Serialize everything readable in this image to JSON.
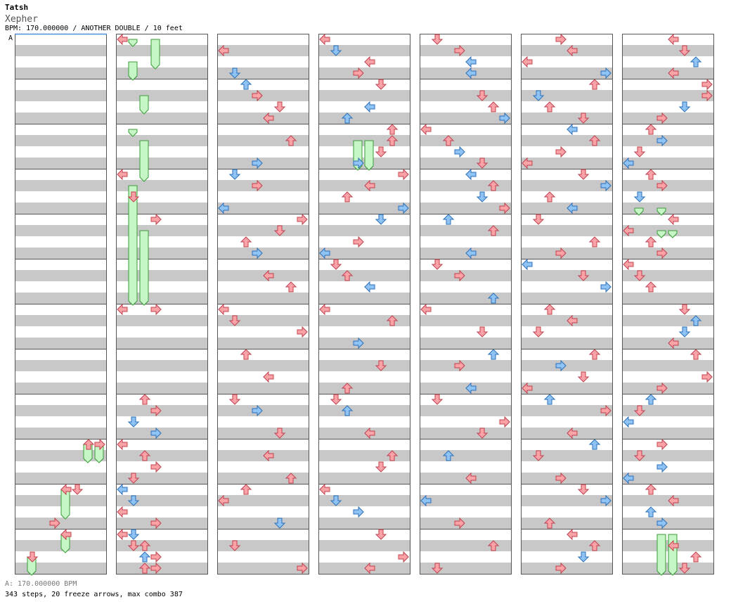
{
  "header": {
    "artist": "Tatsh",
    "title": "Xepher",
    "info": "BPM: 170.000000 / ANOTHER DOUBLE / 10 feet"
  },
  "footer": {
    "bpm_note": "A: 170.000000 BPM",
    "stats": "343 steps, 20 freeze arrows, max combo 387"
  },
  "chart_data": {
    "type": "step-chart",
    "bpm_marker_label": "A",
    "columns": 7,
    "measures_per_column": 12,
    "rows_per_measure": 4,
    "lanes": 8,
    "colors": {
      "quarter_note": "#f9a3a8",
      "eighth_note": "#8fc3f5",
      "freeze": "#c6f5c6",
      "freeze_border": "#3a9c3a",
      "band_gray": "#c8c8c8",
      "band_white": "#ffffff"
    },
    "notes": [
      [
        2,
        1,
        0,
        "r"
      ],
      [
        2,
        3,
        1,
        "b"
      ],
      [
        2,
        4,
        2,
        "b"
      ],
      [
        2,
        5,
        3,
        "r"
      ],
      [
        2,
        5,
        3,
        "r"
      ],
      [
        2,
        6,
        5,
        "r"
      ],
      [
        2,
        7,
        4,
        "r"
      ],
      [
        2,
        9,
        6,
        "r"
      ],
      [
        2,
        11,
        3,
        "b"
      ],
      [
        2,
        12,
        1,
        "b"
      ],
      [
        2,
        13,
        3,
        "r"
      ],
      [
        2,
        15,
        0,
        "b"
      ],
      [
        2,
        16,
        7,
        "r"
      ],
      [
        2,
        17,
        5,
        "r"
      ],
      [
        2,
        18,
        2,
        "r"
      ],
      [
        2,
        19,
        3,
        "b"
      ],
      [
        2,
        21,
        4,
        "r"
      ],
      [
        2,
        22,
        6,
        "r"
      ],
      [
        2,
        24,
        0,
        "r"
      ],
      [
        2,
        25,
        1,
        "r"
      ],
      [
        2,
        26,
        7,
        "r"
      ],
      [
        2,
        28,
        2,
        "r"
      ],
      [
        2,
        30,
        4,
        "r"
      ],
      [
        2,
        32,
        1,
        "r"
      ],
      [
        2,
        33,
        3,
        "b"
      ],
      [
        2,
        35,
        5,
        "r"
      ],
      [
        2,
        37,
        4,
        "r"
      ],
      [
        2,
        39,
        6,
        "r"
      ],
      [
        2,
        40,
        2,
        "r"
      ],
      [
        2,
        41,
        0,
        "r"
      ],
      [
        2,
        43,
        5,
        "b"
      ],
      [
        2,
        45,
        1,
        "r"
      ],
      [
        2,
        47,
        7,
        "r"
      ],
      [
        3,
        0,
        0,
        "r"
      ],
      [
        3,
        1,
        1,
        "b"
      ],
      [
        3,
        2,
        4,
        "r"
      ],
      [
        3,
        3,
        3,
        "r"
      ],
      [
        3,
        4,
        5,
        "r"
      ],
      [
        3,
        6,
        4,
        "b"
      ],
      [
        3,
        7,
        2,
        "b"
      ],
      [
        3,
        8,
        6,
        "r"
      ],
      [
        3,
        9,
        6,
        "r"
      ],
      [
        3,
        10,
        5,
        "r"
      ],
      [
        3,
        11,
        3,
        "b"
      ],
      [
        3,
        12,
        7,
        "r"
      ],
      [
        3,
        13,
        4,
        "r"
      ],
      [
        3,
        14,
        2,
        "r"
      ],
      [
        3,
        15,
        7,
        "b"
      ],
      [
        3,
        16,
        5,
        "b"
      ],
      [
        3,
        18,
        3,
        "r"
      ],
      [
        3,
        19,
        0,
        "b"
      ],
      [
        3,
        20,
        1,
        "r"
      ],
      [
        3,
        21,
        2,
        "r"
      ],
      [
        3,
        22,
        4,
        "b"
      ],
      [
        3,
        24,
        0,
        "r"
      ],
      [
        3,
        25,
        6,
        "r"
      ],
      [
        3,
        27,
        3,
        "b"
      ],
      [
        3,
        29,
        5,
        "r"
      ],
      [
        3,
        31,
        2,
        "r"
      ],
      [
        3,
        32,
        1,
        "r"
      ],
      [
        3,
        33,
        2,
        "b"
      ],
      [
        3,
        35,
        4,
        "r"
      ],
      [
        3,
        37,
        6,
        "r"
      ],
      [
        3,
        38,
        5,
        "r"
      ],
      [
        3,
        40,
        0,
        "r"
      ],
      [
        3,
        41,
        1,
        "b"
      ],
      [
        3,
        42,
        3,
        "b"
      ],
      [
        3,
        44,
        5,
        "r"
      ],
      [
        3,
        46,
        7,
        "r"
      ],
      [
        3,
        47,
        4,
        "r"
      ],
      [
        4,
        0,
        1,
        "r"
      ],
      [
        4,
        1,
        3,
        "r"
      ],
      [
        4,
        2,
        4,
        "b"
      ],
      [
        4,
        3,
        4,
        "b"
      ],
      [
        4,
        5,
        5,
        "r"
      ],
      [
        4,
        6,
        6,
        "r"
      ],
      [
        4,
        7,
        7,
        "b"
      ],
      [
        4,
        8,
        0,
        "r"
      ],
      [
        4,
        9,
        2,
        "r"
      ],
      [
        4,
        10,
        3,
        "b"
      ],
      [
        4,
        11,
        5,
        "r"
      ],
      [
        4,
        12,
        4,
        "b"
      ],
      [
        4,
        13,
        6,
        "r"
      ],
      [
        4,
        14,
        5,
        "b"
      ],
      [
        4,
        15,
        7,
        "r"
      ],
      [
        4,
        16,
        2,
        "b"
      ],
      [
        4,
        17,
        6,
        "r"
      ],
      [
        4,
        19,
        4,
        "b"
      ],
      [
        4,
        20,
        1,
        "r"
      ],
      [
        4,
        21,
        3,
        "r"
      ],
      [
        4,
        23,
        6,
        "b"
      ],
      [
        4,
        24,
        0,
        "r"
      ],
      [
        4,
        26,
        5,
        "r"
      ],
      [
        4,
        28,
        6,
        "b"
      ],
      [
        4,
        29,
        3,
        "r"
      ],
      [
        4,
        31,
        4,
        "b"
      ],
      [
        4,
        32,
        1,
        "r"
      ],
      [
        4,
        34,
        7,
        "r"
      ],
      [
        4,
        35,
        5,
        "r"
      ],
      [
        4,
        37,
        2,
        "b"
      ],
      [
        4,
        39,
        4,
        "r"
      ],
      [
        4,
        41,
        0,
        "b"
      ],
      [
        4,
        43,
        3,
        "r"
      ],
      [
        4,
        45,
        6,
        "r"
      ],
      [
        4,
        47,
        1,
        "r"
      ],
      [
        5,
        0,
        3,
        "r"
      ],
      [
        5,
        1,
        4,
        "r"
      ],
      [
        5,
        2,
        0,
        "r"
      ],
      [
        5,
        3,
        7,
        "b"
      ],
      [
        5,
        4,
        6,
        "r"
      ],
      [
        5,
        5,
        1,
        "b"
      ],
      [
        5,
        6,
        2,
        "r"
      ],
      [
        5,
        7,
        5,
        "r"
      ],
      [
        5,
        8,
        4,
        "b"
      ],
      [
        5,
        9,
        6,
        "r"
      ],
      [
        5,
        10,
        3,
        "r"
      ],
      [
        5,
        11,
        0,
        "r"
      ],
      [
        5,
        12,
        5,
        "r"
      ],
      [
        5,
        13,
        7,
        "b"
      ],
      [
        5,
        14,
        2,
        "r"
      ],
      [
        5,
        15,
        4,
        "b"
      ],
      [
        5,
        16,
        1,
        "r"
      ],
      [
        5,
        18,
        6,
        "r"
      ],
      [
        5,
        19,
        3,
        "r"
      ],
      [
        5,
        20,
        0,
        "b"
      ],
      [
        5,
        21,
        5,
        "r"
      ],
      [
        5,
        22,
        7,
        "b"
      ],
      [
        5,
        24,
        2,
        "r"
      ],
      [
        5,
        25,
        4,
        "r"
      ],
      [
        5,
        26,
        1,
        "r"
      ],
      [
        5,
        28,
        6,
        "r"
      ],
      [
        5,
        29,
        3,
        "b"
      ],
      [
        5,
        30,
        5,
        "r"
      ],
      [
        5,
        31,
        0,
        "r"
      ],
      [
        5,
        32,
        2,
        "b"
      ],
      [
        5,
        33,
        7,
        "r"
      ],
      [
        5,
        35,
        4,
        "r"
      ],
      [
        5,
        36,
        6,
        "b"
      ],
      [
        5,
        37,
        1,
        "r"
      ],
      [
        5,
        39,
        3,
        "r"
      ],
      [
        5,
        40,
        5,
        "r"
      ],
      [
        5,
        41,
        7,
        "b"
      ],
      [
        5,
        43,
        2,
        "r"
      ],
      [
        5,
        44,
        4,
        "r"
      ],
      [
        5,
        45,
        6,
        "r"
      ],
      [
        5,
        46,
        5,
        "b"
      ],
      [
        5,
        47,
        3,
        "r"
      ],
      [
        6,
        0,
        4,
        "r"
      ],
      [
        6,
        1,
        5,
        "r"
      ],
      [
        6,
        2,
        6,
        "b"
      ],
      [
        6,
        3,
        4,
        "r"
      ],
      [
        6,
        4,
        7,
        "r"
      ],
      [
        6,
        5,
        7,
        "r"
      ],
      [
        6,
        6,
        5,
        "b"
      ],
      [
        6,
        7,
        3,
        "r"
      ],
      [
        6,
        8,
        2,
        "r"
      ],
      [
        6,
        9,
        3,
        "b"
      ],
      [
        6,
        10,
        1,
        "r"
      ],
      [
        6,
        11,
        0,
        "b"
      ],
      [
        6,
        12,
        2,
        "r"
      ],
      [
        6,
        13,
        3,
        "r"
      ],
      [
        6,
        14,
        1,
        "b"
      ],
      [
        6,
        16,
        4,
        "r"
      ],
      [
        6,
        17,
        0,
        "r"
      ],
      [
        6,
        18,
        2,
        "r"
      ],
      [
        6,
        19,
        3,
        "r"
      ],
      [
        6,
        20,
        0,
        "r"
      ],
      [
        6,
        21,
        1,
        "r"
      ],
      [
        6,
        22,
        2,
        "r"
      ],
      [
        6,
        24,
        5,
        "r"
      ],
      [
        6,
        25,
        6,
        "b"
      ],
      [
        6,
        26,
        5,
        "b"
      ],
      [
        6,
        27,
        4,
        "r"
      ],
      [
        6,
        28,
        6,
        "r"
      ],
      [
        6,
        30,
        7,
        "r"
      ],
      [
        6,
        31,
        3,
        "r"
      ],
      [
        6,
        32,
        2,
        "b"
      ],
      [
        6,
        33,
        1,
        "r"
      ],
      [
        6,
        34,
        0,
        "b"
      ],
      [
        6,
        36,
        3,
        "r"
      ],
      [
        6,
        37,
        1,
        "r"
      ],
      [
        6,
        38,
        3,
        "b"
      ],
      [
        6,
        39,
        0,
        "b"
      ],
      [
        6,
        40,
        2,
        "r"
      ],
      [
        6,
        41,
        4,
        "r"
      ],
      [
        6,
        42,
        2,
        "b"
      ],
      [
        6,
        43,
        3,
        "b"
      ],
      [
        6,
        45,
        4,
        "r"
      ],
      [
        6,
        46,
        6,
        "r"
      ],
      [
        6,
        47,
        5,
        "r"
      ],
      [
        1,
        0,
        0,
        "r"
      ],
      [
        1,
        12,
        0,
        "r"
      ],
      [
        1,
        14,
        1,
        "r"
      ],
      [
        1,
        16,
        3,
        "r"
      ],
      [
        1,
        24,
        0,
        "r"
      ],
      [
        1,
        24,
        3,
        "r"
      ],
      [
        1,
        32,
        2,
        "r"
      ],
      [
        1,
        33,
        3,
        "r"
      ],
      [
        1,
        34,
        1,
        "b"
      ],
      [
        1,
        35,
        3,
        "b"
      ],
      [
        1,
        36,
        0,
        "r"
      ],
      [
        1,
        37,
        2,
        "r"
      ],
      [
        1,
        38,
        3,
        "r"
      ],
      [
        1,
        39,
        1,
        "r"
      ],
      [
        1,
        40,
        0,
        "b"
      ],
      [
        1,
        41,
        1,
        "b"
      ],
      [
        1,
        42,
        0,
        "r"
      ],
      [
        1,
        44,
        0,
        "r"
      ],
      [
        1,
        45,
        1,
        "r"
      ],
      [
        1,
        46,
        2,
        "b"
      ],
      [
        1,
        47,
        3,
        "r"
      ],
      [
        1,
        43,
        3,
        "r"
      ],
      [
        1,
        44,
        1,
        "b"
      ],
      [
        1,
        45,
        2,
        "r"
      ],
      [
        1,
        46,
        3,
        "r"
      ],
      [
        1,
        47,
        2,
        "r"
      ],
      [
        0,
        36,
        6,
        "r"
      ],
      [
        0,
        36,
        7,
        "r"
      ],
      [
        0,
        40,
        4,
        "r"
      ],
      [
        0,
        40,
        5,
        "r"
      ],
      [
        0,
        43,
        3,
        "r"
      ],
      [
        0,
        44,
        4,
        "r"
      ],
      [
        0,
        46,
        1,
        "r"
      ]
    ],
    "freezes": [
      [
        0,
        36,
        6,
        38
      ],
      [
        0,
        36,
        7,
        38
      ],
      [
        0,
        40,
        4,
        43
      ],
      [
        0,
        44,
        4,
        46
      ],
      [
        0,
        46,
        1,
        48
      ],
      [
        1,
        0,
        1,
        1
      ],
      [
        1,
        0,
        3,
        3
      ],
      [
        1,
        2,
        1,
        4
      ],
      [
        1,
        5,
        2,
        7
      ],
      [
        1,
        8,
        1,
        9
      ],
      [
        1,
        9,
        2,
        13
      ],
      [
        1,
        13,
        1,
        24
      ],
      [
        1,
        17,
        2,
        24
      ],
      [
        3,
        9,
        3,
        12
      ],
      [
        3,
        9,
        4,
        12
      ],
      [
        6,
        15,
        1,
        16
      ],
      [
        6,
        15,
        3,
        16
      ],
      [
        6,
        17,
        3,
        18
      ],
      [
        6,
        17,
        4,
        18
      ],
      [
        6,
        44,
        3,
        48
      ],
      [
        6,
        44,
        4,
        48
      ]
    ]
  }
}
